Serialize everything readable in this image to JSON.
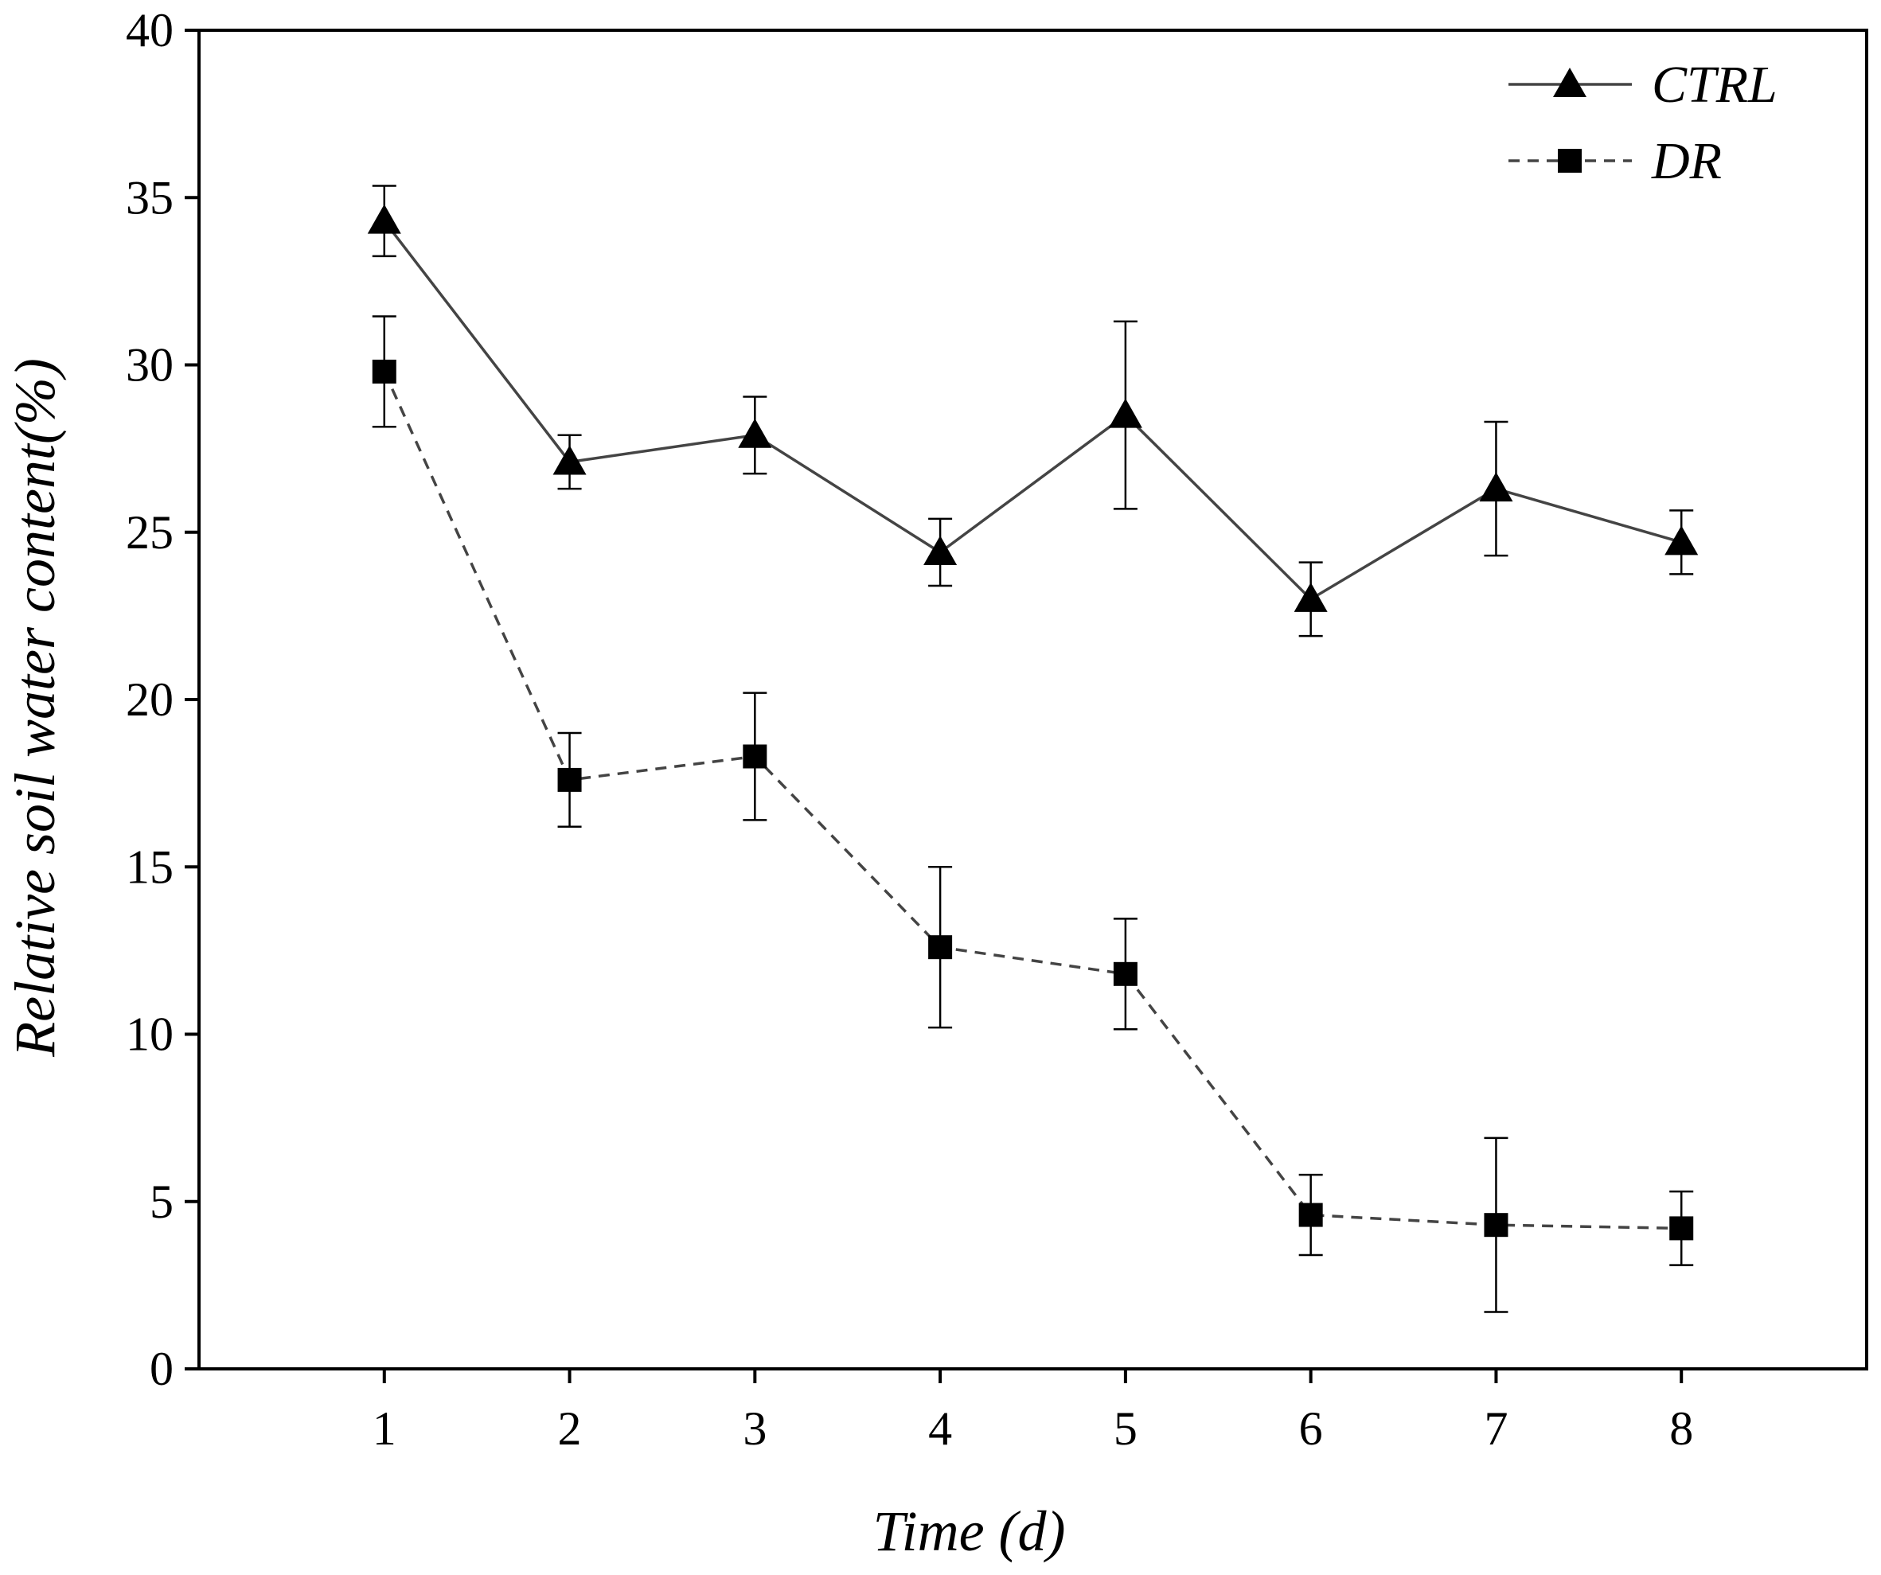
{
  "chart_data": {
    "type": "line",
    "title": "",
    "xlabel": "Time (d)",
    "ylabel": "Relative soil water content(%)",
    "x": [
      1,
      2,
      3,
      4,
      5,
      6,
      7,
      8
    ],
    "xlim": [
      0,
      9
    ],
    "ylim": [
      0,
      40
    ],
    "yticks": [
      0,
      5,
      10,
      15,
      20,
      25,
      30,
      35,
      40
    ],
    "grid": false,
    "legend_position": "top-right",
    "series": [
      {
        "name": "CTRL",
        "marker": "triangle",
        "line_style": "solid",
        "color": "#444444",
        "values": [
          34.3,
          27.1,
          27.9,
          24.4,
          28.5,
          23.0,
          26.3,
          24.7
        ],
        "errors": [
          1.05,
          0.8,
          1.15,
          1.0,
          2.8,
          1.1,
          2.0,
          0.95
        ]
      },
      {
        "name": "DR",
        "marker": "square",
        "line_style": "dashed",
        "color": "#444444",
        "values": [
          29.8,
          17.6,
          18.3,
          12.6,
          11.8,
          4.6,
          4.3,
          4.2
        ],
        "errors": [
          1.65,
          1.4,
          1.9,
          2.4,
          1.65,
          1.2,
          2.6,
          1.1
        ]
      }
    ]
  }
}
